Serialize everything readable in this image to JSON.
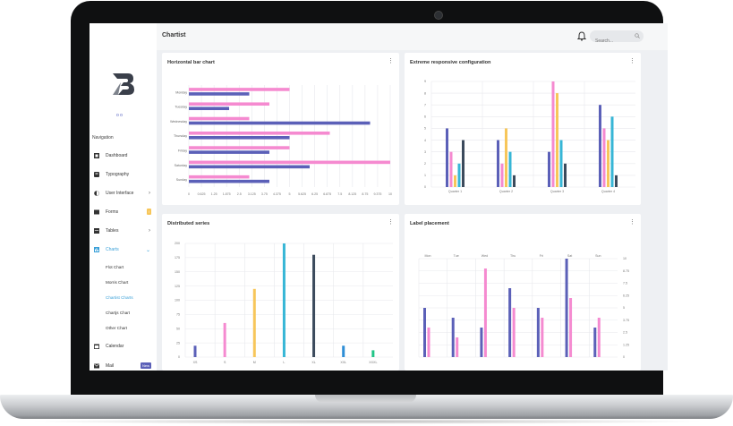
{
  "colors": {
    "indigo": "#5b60b8",
    "pink": "#f58ad0",
    "yellow": "#f7c65a",
    "teal": "#37b6d6",
    "slate": "#3b4a5c",
    "blue": "#2f8ed6",
    "green": "#22c587",
    "accent": "#3aa0d8",
    "grid": "#e7e8ec"
  },
  "sidebar": {
    "dots": "o o",
    "nav_title": "Navigation",
    "items": [
      {
        "label": "Dashboard",
        "icon": "dashboard-icon"
      },
      {
        "label": "Typography",
        "icon": "typography-icon"
      },
      {
        "label": "User Interface",
        "icon": "user-interface-icon"
      },
      {
        "label": "Forms",
        "icon": "forms-icon",
        "badge": "!"
      },
      {
        "label": "Tables",
        "icon": "tables-icon"
      },
      {
        "label": "Charts",
        "icon": "charts-icon"
      },
      {
        "label": "Calendar",
        "icon": "calendar-icon"
      },
      {
        "label": "Mail",
        "icon": "mail-icon",
        "badge": "New"
      }
    ],
    "chart_sub": [
      "Flot Chart",
      "Morris Chart",
      "Chartist Charts",
      "Chartjs Chart",
      "Other Chart"
    ]
  },
  "header": {
    "title": "Chartist",
    "search_placeholder": "Search..."
  },
  "cards": [
    {
      "title": "Horizontal bar chart"
    },
    {
      "title": "Extreme responsive configuration"
    },
    {
      "title": "Distributed series"
    },
    {
      "title": "Label placement"
    }
  ],
  "chart_data": [
    {
      "type": "bar",
      "orientation": "horizontal",
      "categories": [
        "Monday",
        "Tuesday",
        "Wednesday",
        "Thursday",
        "Friday",
        "Saturday",
        "Sunday"
      ],
      "series": [
        {
          "values": [
            5,
            4,
            3,
            7,
            5,
            10,
            3
          ],
          "color": "#f58ad0"
        },
        {
          "values": [
            3,
            2,
            9,
            5,
            4,
            6,
            4
          ],
          "color": "#5b60b8"
        }
      ],
      "xticks": [
        "0",
        "0.625",
        "1.25",
        "1.875",
        "2.5",
        "3.125",
        "3.75",
        "4.375",
        "5",
        "5.625",
        "6.25",
        "6.875",
        "7.5",
        "8.125",
        "8.75",
        "9.375",
        "10"
      ],
      "xlim": [
        0,
        10
      ]
    },
    {
      "type": "bar",
      "categories": [
        "Quarter 1",
        "Quarter 2",
        "Quarter 3",
        "Quarter 4"
      ],
      "series": [
        {
          "values": [
            5,
            4,
            3,
            7
          ],
          "color": "#5b60b8"
        },
        {
          "values": [
            3,
            2,
            9,
            5
          ],
          "color": "#f58ad0"
        },
        {
          "values": [
            1,
            5,
            8,
            4
          ],
          "color": "#f7c65a"
        },
        {
          "values": [
            2,
            3,
            4,
            6
          ],
          "color": "#37b6d6"
        },
        {
          "values": [
            4,
            1,
            2,
            1
          ],
          "color": "#3b4a5c"
        }
      ],
      "yticks": [
        "0",
        "1",
        "2",
        "3",
        "4",
        "5",
        "6",
        "7",
        "8",
        "9"
      ],
      "ylim": [
        0,
        9
      ]
    },
    {
      "type": "bar",
      "distributed": true,
      "categories": [
        "XS",
        "S",
        "M",
        "L",
        "XL",
        "XXL",
        "XXXL"
      ],
      "values": [
        20,
        60,
        120,
        200,
        180,
        20,
        12
      ],
      "colors": [
        "#5b60b8",
        "#f58ad0",
        "#f7c65a",
        "#37b6d6",
        "#3b4a5c",
        "#2f8ed6",
        "#22c587"
      ],
      "yticks": [
        "0",
        "25",
        "50",
        "75",
        "100",
        "125",
        "150",
        "175",
        "200"
      ],
      "ylim": [
        0,
        200
      ]
    },
    {
      "type": "bar",
      "categories": [
        "Mon",
        "Tue",
        "Wed",
        "Thu",
        "Fri",
        "Sat",
        "Sun"
      ],
      "series": [
        {
          "values": [
            5,
            4,
            3,
            7,
            5,
            10,
            3
          ],
          "color": "#5b60b8"
        },
        {
          "values": [
            3,
            2,
            9,
            5,
            4,
            6,
            4
          ],
          "color": "#f58ad0"
        }
      ],
      "yticks": [
        "0",
        "1.25",
        "2.5",
        "3.75",
        "5",
        "6.25",
        "7.5",
        "8.75",
        "10"
      ],
      "ylim": [
        0,
        10
      ]
    }
  ]
}
